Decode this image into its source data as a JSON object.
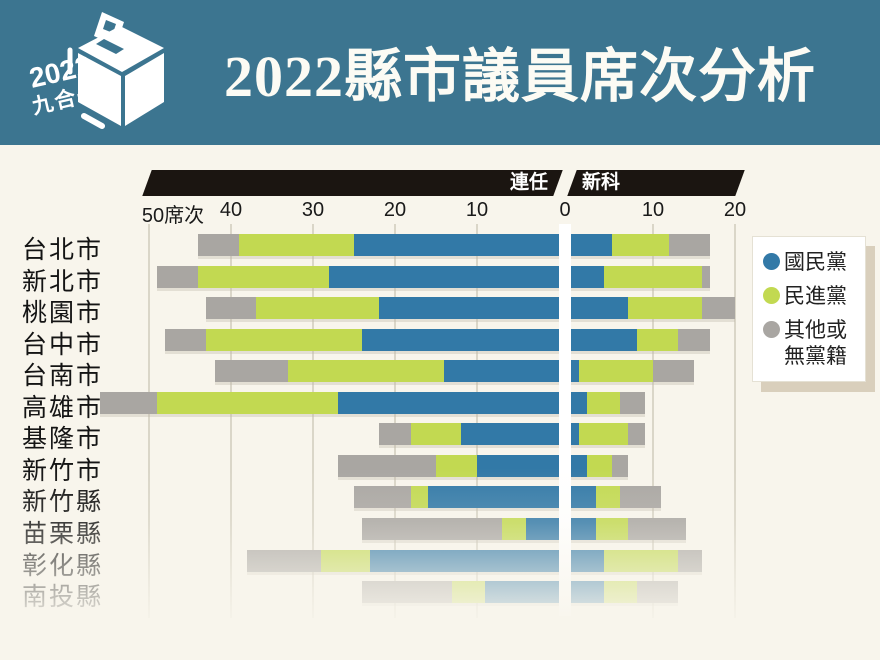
{
  "header": {
    "title": "2022縣市議員席次分析",
    "badge_year": "2022",
    "badge_label": "九合一"
  },
  "axis": {
    "left_caption": "連任",
    "right_caption": "新科",
    "ticks": [
      {
        "label": "50席次",
        "seats": -50
      },
      {
        "label": "40",
        "seats": -40
      },
      {
        "label": "30",
        "seats": -30
      },
      {
        "label": "20",
        "seats": -20
      },
      {
        "label": "10",
        "seats": -10
      },
      {
        "label": "0",
        "seats": 0
      },
      {
        "label": "10",
        "seats": 10
      },
      {
        "label": "20",
        "seats": 20
      }
    ]
  },
  "legend": {
    "items": [
      {
        "key": "kmt",
        "label": "國民黨",
        "color": "#3279a7"
      },
      {
        "key": "dpp",
        "label": "民進黨",
        "color": "#c2d951"
      },
      {
        "key": "other",
        "label": "其他或\n無黨籍",
        "color": "#a9a6a2"
      }
    ]
  },
  "chart_data": {
    "type": "bar",
    "variant": "diverging-stacked-horizontal",
    "title": "2022縣市議員席次分析",
    "unit": "席次",
    "left_side_label": "連任",
    "right_side_label": "新科",
    "axis_range_left_seats": 50,
    "axis_range_right_seats": 20,
    "grid": true,
    "legend_position": "right",
    "series": [
      "國民黨",
      "民進黨",
      "其他或無黨籍"
    ],
    "series_keys": [
      "kmt",
      "dpp",
      "other"
    ],
    "colors": [
      "#3279a7",
      "#c2d951",
      "#a9a6a2"
    ],
    "rows": [
      {
        "region": "台北市",
        "incumbent": [
          25,
          14,
          5
        ],
        "new_elected": [
          5,
          7,
          5
        ]
      },
      {
        "region": "新北市",
        "incumbent": [
          28,
          16,
          5
        ],
        "new_elected": [
          4,
          12,
          1
        ]
      },
      {
        "region": "桃園市",
        "incumbent": [
          22,
          15,
          6
        ],
        "new_elected": [
          7,
          9,
          4
        ]
      },
      {
        "region": "台中市",
        "incumbent": [
          24,
          19,
          5
        ],
        "new_elected": [
          8,
          5,
          4
        ]
      },
      {
        "region": "台南市",
        "incumbent": [
          14,
          19,
          9
        ],
        "new_elected": [
          1,
          9,
          5
        ]
      },
      {
        "region": "高雄市",
        "incumbent": [
          27,
          22,
          7
        ],
        "new_elected": [
          2,
          4,
          3
        ]
      },
      {
        "region": "基隆市",
        "incumbent": [
          12,
          6,
          4
        ],
        "new_elected": [
          1,
          6,
          2
        ]
      },
      {
        "region": "新竹市",
        "incumbent": [
          10,
          5,
          12
        ],
        "new_elected": [
          2,
          3,
          2
        ]
      },
      {
        "region": "新竹縣",
        "incumbent": [
          16,
          2,
          7
        ],
        "new_elected": [
          3,
          3,
          5
        ]
      },
      {
        "region": "苗栗縣",
        "incumbent": [
          4,
          3,
          17
        ],
        "new_elected": [
          3,
          4,
          7
        ]
      },
      {
        "region": "彰化縣",
        "incumbent": [
          23,
          6,
          9
        ],
        "new_elected": [
          4,
          9,
          3
        ]
      },
      {
        "region": "南投縣",
        "incumbent": [
          9,
          4,
          11
        ],
        "new_elected": [
          4,
          4,
          5
        ]
      }
    ]
  }
}
